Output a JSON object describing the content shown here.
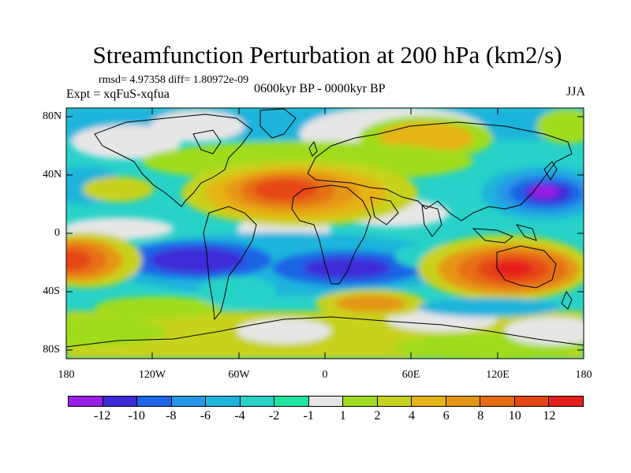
{
  "title": "Streamfunction Perturbation at 200 hPa (km2/s)",
  "stats": "rmsd= 4.97358 diff= 1.80972e-09",
  "experiment": "Expt = xqFuS-xqfua",
  "period": "0600kyr BP - 0000kyr BP",
  "season": "JJA",
  "y_ticks": [
    "80N",
    "40N",
    "0",
    "40S",
    "80S"
  ],
  "x_ticks": [
    "180",
    "120W",
    "60W",
    "0",
    "60E",
    "120E",
    "180"
  ],
  "colorbar": {
    "colors": [
      "#9a1ee6",
      "#3c2ad8",
      "#1e64e6",
      "#2896e6",
      "#1eb4dc",
      "#28d2c8",
      "#1ee6a0",
      "#e6e6e6",
      "#a0dc1e",
      "#c8d21e",
      "#e6b414",
      "#e69614",
      "#e66e14",
      "#e64614",
      "#e61e1e"
    ],
    "labels": [
      "-12",
      "-10",
      "-8",
      "-6",
      "-4",
      "-2",
      "-1",
      "1",
      "2",
      "4",
      "6",
      "8",
      "10",
      "12"
    ]
  }
}
